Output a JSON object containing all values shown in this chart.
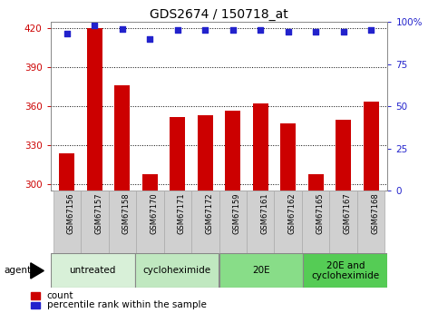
{
  "title": "GDS2674 / 150718_at",
  "categories": [
    "GSM67156",
    "GSM67157",
    "GSM67158",
    "GSM67170",
    "GSM67171",
    "GSM67172",
    "GSM67159",
    "GSM67161",
    "GSM67162",
    "GSM67165",
    "GSM67167",
    "GSM67168"
  ],
  "counts": [
    324,
    420,
    376,
    308,
    352,
    353,
    357,
    362,
    347,
    308,
    350,
    364
  ],
  "percentile_ranks": [
    93,
    98,
    96,
    90,
    95,
    95,
    95,
    95,
    94,
    94,
    94,
    95
  ],
  "ylim_left": [
    295,
    425
  ],
  "ylim_right": [
    0,
    100
  ],
  "yticks_left": [
    300,
    330,
    360,
    390,
    420
  ],
  "yticks_right": [
    0,
    25,
    50,
    75,
    100
  ],
  "bar_color": "#cc0000",
  "dot_color": "#2222cc",
  "bar_width": 0.55,
  "groups": [
    {
      "label": "untreated",
      "start": 0,
      "end": 3,
      "color": "#d8f0d8"
    },
    {
      "label": "cycloheximide",
      "start": 3,
      "end": 6,
      "color": "#c0e8c0"
    },
    {
      "label": "20E",
      "start": 6,
      "end": 9,
      "color": "#88dd88"
    },
    {
      "label": "20E and\ncycloheximide",
      "start": 9,
      "end": 12,
      "color": "#55cc55"
    }
  ],
  "tick_bg_color": "#d0d0d0",
  "tick_border_color": "#aaaaaa",
  "plot_bg_color": "#ffffff",
  "title_fontsize": 10,
  "tick_fontsize": 7.5,
  "cat_fontsize": 6,
  "group_fontsize": 7.5,
  "legend_fontsize": 7.5,
  "left_tick_color": "#cc0000",
  "right_tick_color": "#2222cc"
}
